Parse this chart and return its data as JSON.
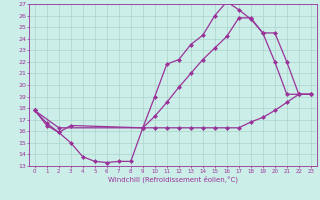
{
  "xlabel": "Windchill (Refroidissement éolien,°C)",
  "bg_color": "#cceee8",
  "line_color": "#993399",
  "xlim": [
    -0.5,
    23.5
  ],
  "ylim": [
    13,
    27
  ],
  "xticks": [
    0,
    1,
    2,
    3,
    4,
    5,
    6,
    7,
    8,
    9,
    10,
    11,
    12,
    13,
    14,
    15,
    16,
    17,
    18,
    19,
    20,
    21,
    22,
    23
  ],
  "yticks": [
    13,
    14,
    15,
    16,
    17,
    18,
    19,
    20,
    21,
    22,
    23,
    24,
    25,
    26,
    27
  ],
  "line1_x": [
    0,
    1,
    2,
    3,
    4,
    5,
    6,
    7,
    8,
    9,
    10,
    11,
    12,
    13,
    14,
    15,
    16,
    17,
    18,
    19,
    20,
    21,
    22,
    23
  ],
  "line1_y": [
    17.8,
    16.7,
    15.9,
    15.0,
    13.8,
    13.4,
    13.3,
    13.4,
    13.4,
    16.3,
    16.3,
    16.3,
    16.3,
    16.3,
    16.3,
    16.3,
    16.3,
    16.3,
    16.8,
    17.2,
    17.8,
    18.5,
    19.2,
    19.2
  ],
  "line2_x": [
    0,
    1,
    2,
    3,
    9,
    10,
    11,
    12,
    13,
    14,
    15,
    16,
    17,
    18,
    19,
    20,
    21,
    22,
    23
  ],
  "line2_y": [
    17.8,
    16.5,
    15.9,
    16.5,
    16.3,
    19.0,
    21.8,
    22.2,
    23.5,
    24.3,
    26.0,
    27.2,
    26.5,
    25.7,
    24.5,
    22.0,
    19.2,
    19.2,
    19.2
  ],
  "line3_x": [
    0,
    2,
    9,
    10,
    11,
    12,
    13,
    14,
    15,
    16,
    17,
    18,
    19,
    20,
    21,
    22,
    23
  ],
  "line3_y": [
    17.8,
    16.3,
    16.3,
    17.3,
    18.5,
    19.8,
    21.0,
    22.2,
    23.2,
    24.2,
    25.8,
    25.8,
    24.5,
    24.5,
    22.0,
    19.2,
    19.2
  ],
  "grid_color": "#aad4cc",
  "marker": "D",
  "markersize": 2.5,
  "linewidth": 0.9
}
